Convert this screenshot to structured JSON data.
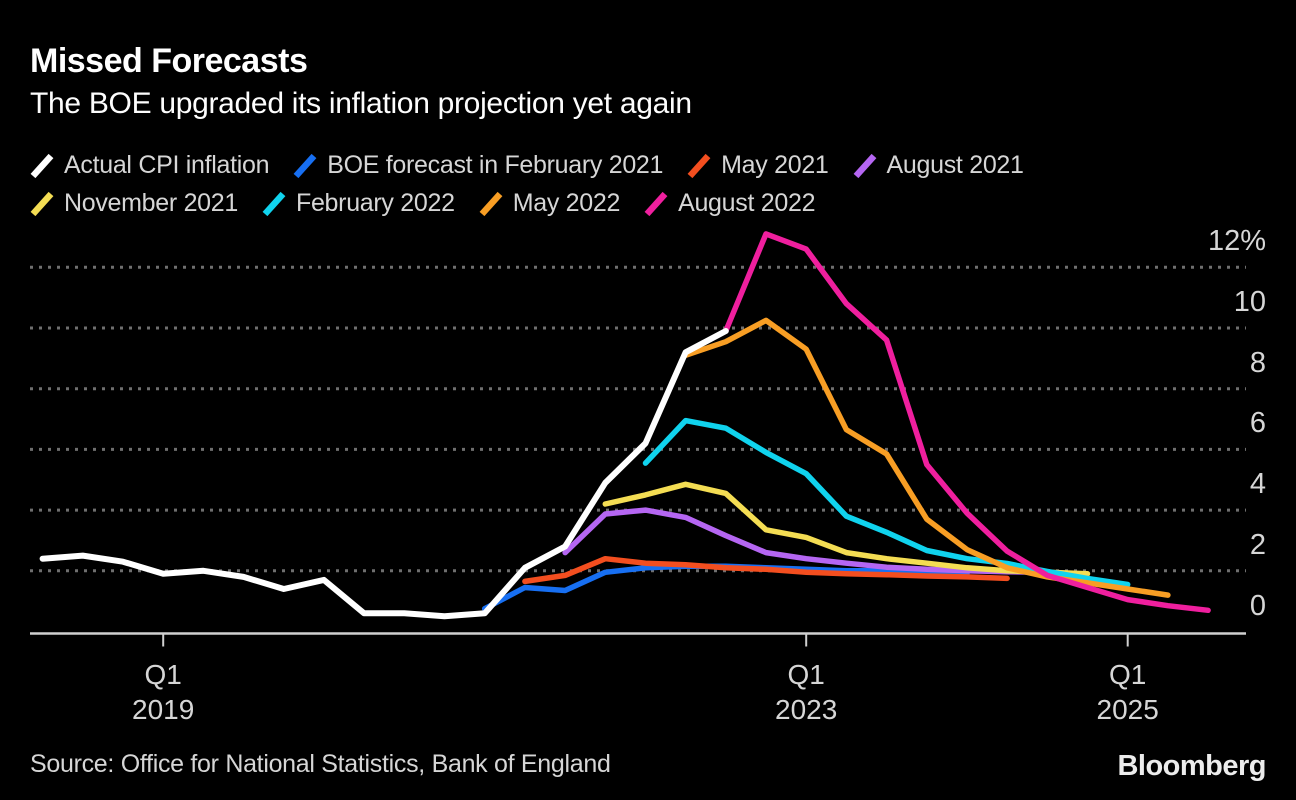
{
  "header": {
    "title": "Missed Forecasts",
    "subtitle": "The BOE upgraded its inflation projection yet again"
  },
  "footer": {
    "source": "Source: Office for National Statistics, Bank of England",
    "brand": "Bloomberg"
  },
  "colors": {
    "background": "#000000",
    "text_primary": "#ffffff",
    "text_secondary": "#d6d6d6",
    "gridline": "#6f6f6f",
    "axis": "#d0d0d0"
  },
  "chart_data": {
    "type": "line",
    "title": "Missed Forecasts",
    "subtitle": "The BOE upgraded its inflation projection yet again",
    "unit": "%",
    "grid": "dotted horizontal",
    "legend_position": "top",
    "y_axis": {
      "side": "right",
      "range": [
        0,
        13.5
      ],
      "ticks": [
        {
          "label": "12%",
          "value": 12
        },
        {
          "label": "10",
          "value": 10
        },
        {
          "label": "8",
          "value": 8
        },
        {
          "label": "6",
          "value": 6
        },
        {
          "label": "4",
          "value": 4
        },
        {
          "label": "2",
          "value": 2
        },
        {
          "label": "0",
          "value": 0
        }
      ]
    },
    "x_axis": {
      "range": [
        2018.1,
        2025.7
      ],
      "ticks": [
        {
          "line1": "Q1",
          "line2": "2019",
          "t": 2019.0
        },
        {
          "line1": "Q1",
          "line2": "2023",
          "t": 2023.0
        },
        {
          "line1": "Q1",
          "line2": "2025",
          "t": 2025.0
        }
      ]
    },
    "legend_rows": [
      [
        0,
        1,
        2,
        3
      ],
      [
        4,
        5,
        6,
        7
      ]
    ],
    "series": [
      {
        "name": "Actual CPI inflation",
        "slug": "actual-cpi-inflation",
        "color": "#ffffff",
        "width": 6,
        "points": [
          [
            2018.25,
            2.4
          ],
          [
            2018.5,
            2.5
          ],
          [
            2018.75,
            2.3
          ],
          [
            2019.0,
            1.9
          ],
          [
            2019.25,
            2.0
          ],
          [
            2019.5,
            1.8
          ],
          [
            2019.75,
            1.4
          ],
          [
            2020.0,
            1.7
          ],
          [
            2020.25,
            0.6
          ],
          [
            2020.5,
            0.6
          ],
          [
            2020.75,
            0.5
          ],
          [
            2021.0,
            0.6
          ],
          [
            2021.25,
            2.1
          ],
          [
            2021.5,
            2.8
          ],
          [
            2021.75,
            4.9
          ],
          [
            2022.0,
            6.2
          ],
          [
            2022.25,
            9.2
          ],
          [
            2022.5,
            9.9
          ]
        ]
      },
      {
        "name": "BOE forecast in February 2021",
        "slug": "boe-forecast-february-2021",
        "color": "#176ff2",
        "width": 5.5,
        "points": [
          [
            2021.0,
            0.75
          ],
          [
            2021.25,
            1.45
          ],
          [
            2021.5,
            1.35
          ],
          [
            2021.75,
            1.95
          ],
          [
            2022.0,
            2.1
          ],
          [
            2022.25,
            2.15
          ],
          [
            2022.5,
            2.15
          ],
          [
            2022.75,
            2.1
          ],
          [
            2023.0,
            2.05
          ],
          [
            2023.25,
            2.0
          ],
          [
            2023.5,
            2.0
          ],
          [
            2023.75,
            1.95
          ],
          [
            2024.0,
            1.9
          ]
        ]
      },
      {
        "name": "May 2021",
        "slug": "may-2021",
        "color": "#f34e1f",
        "width": 5.5,
        "points": [
          [
            2021.25,
            1.65
          ],
          [
            2021.5,
            1.85
          ],
          [
            2021.75,
            2.4
          ],
          [
            2022.0,
            2.25
          ],
          [
            2022.25,
            2.2
          ],
          [
            2022.5,
            2.1
          ],
          [
            2022.75,
            2.05
          ],
          [
            2023.0,
            1.95
          ],
          [
            2023.25,
            1.9
          ],
          [
            2023.5,
            1.87
          ],
          [
            2023.75,
            1.83
          ],
          [
            2024.0,
            1.8
          ],
          [
            2024.25,
            1.75
          ]
        ]
      },
      {
        "name": "August 2021",
        "slug": "august-2021",
        "color": "#b566f2",
        "width": 5.5,
        "points": [
          [
            2021.5,
            2.6
          ],
          [
            2021.75,
            3.87
          ],
          [
            2022.0,
            4.0
          ],
          [
            2022.25,
            3.76
          ],
          [
            2022.5,
            3.16
          ],
          [
            2022.75,
            2.6
          ],
          [
            2023.0,
            2.4
          ],
          [
            2023.25,
            2.25
          ],
          [
            2023.5,
            2.12
          ],
          [
            2023.75,
            2.05
          ],
          [
            2024.0,
            2.0
          ],
          [
            2024.25,
            1.97
          ],
          [
            2024.5,
            1.95
          ]
        ]
      },
      {
        "name": "November 2021",
        "slug": "november-2021",
        "color": "#f4dd53",
        "width": 5.5,
        "points": [
          [
            2021.75,
            4.2
          ],
          [
            2022.0,
            4.5
          ],
          [
            2022.25,
            4.85
          ],
          [
            2022.5,
            4.55
          ],
          [
            2022.75,
            3.35
          ],
          [
            2023.0,
            3.1
          ],
          [
            2023.25,
            2.6
          ],
          [
            2023.5,
            2.4
          ],
          [
            2023.75,
            2.25
          ],
          [
            2024.0,
            2.1
          ],
          [
            2024.25,
            2.0
          ],
          [
            2024.5,
            1.95
          ],
          [
            2024.75,
            1.9
          ]
        ]
      },
      {
        "name": "February 2022",
        "slug": "february-2022",
        "color": "#10d3ee",
        "width": 5.5,
        "points": [
          [
            2022.0,
            5.55
          ],
          [
            2022.25,
            6.95
          ],
          [
            2022.5,
            6.7
          ],
          [
            2022.75,
            5.9
          ],
          [
            2023.0,
            5.2
          ],
          [
            2023.25,
            3.8
          ],
          [
            2023.5,
            3.27
          ],
          [
            2023.75,
            2.67
          ],
          [
            2024.0,
            2.4
          ],
          [
            2024.25,
            2.24
          ],
          [
            2024.5,
            1.98
          ],
          [
            2024.75,
            1.75
          ],
          [
            2025.0,
            1.55
          ]
        ]
      },
      {
        "name": "May 2022",
        "slug": "may-2022",
        "color": "#f89e24",
        "width": 5.5,
        "points": [
          [
            2022.25,
            9.1
          ],
          [
            2022.5,
            9.55
          ],
          [
            2022.75,
            10.25
          ],
          [
            2023.0,
            9.3
          ],
          [
            2023.25,
            6.65
          ],
          [
            2023.5,
            5.85
          ],
          [
            2023.75,
            3.7
          ],
          [
            2024.0,
            2.7
          ],
          [
            2024.25,
            2.1
          ],
          [
            2024.5,
            1.8
          ],
          [
            2024.75,
            1.6
          ],
          [
            2025.0,
            1.4
          ],
          [
            2025.25,
            1.2
          ]
        ]
      },
      {
        "name": "August 2022",
        "slug": "august-2022",
        "color": "#ef1f9e",
        "width": 5.5,
        "points": [
          [
            2022.5,
            9.9
          ],
          [
            2022.75,
            13.1
          ],
          [
            2023.0,
            12.6
          ],
          [
            2023.25,
            10.8
          ],
          [
            2023.5,
            9.6
          ],
          [
            2023.75,
            5.5
          ],
          [
            2024.0,
            3.9
          ],
          [
            2024.25,
            2.65
          ],
          [
            2024.5,
            1.85
          ],
          [
            2024.75,
            1.45
          ],
          [
            2025.0,
            1.05
          ],
          [
            2025.25,
            0.85
          ],
          [
            2025.5,
            0.7
          ]
        ]
      }
    ]
  }
}
